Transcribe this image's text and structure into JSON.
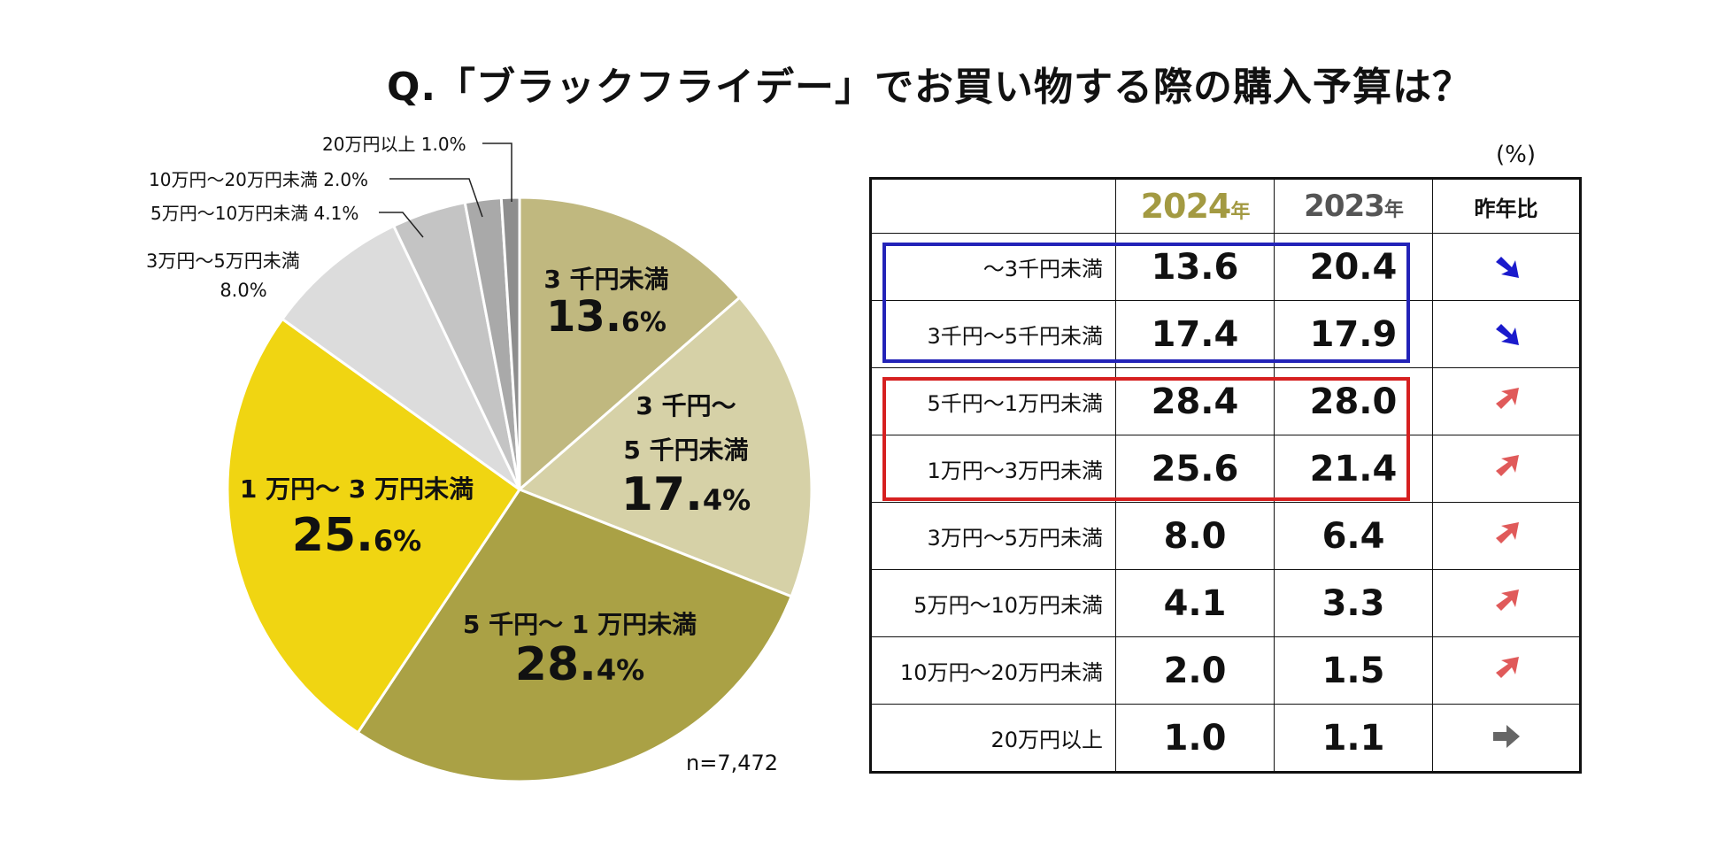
{
  "title": "Q.「ブラックフライデー」でお買い物する際の購入予算は？",
  "sample_size": "n=7,472",
  "unit_label": "(%)",
  "colors": {
    "up_arrow": "#e05a5a",
    "down_arrow": "#1a1acc",
    "flat_arrow": "#666666",
    "year_2024": "#a39a42",
    "year_2023": "#555555",
    "decrease_box": "#2323b8",
    "increase_box": "#d62020"
  },
  "table": {
    "header": {
      "label": "",
      "y2024_num": "2024",
      "y2024_suffix": "年",
      "y2023_num": "2023",
      "y2023_suffix": "年",
      "compare": "昨年比"
    },
    "rows": [
      {
        "label": "〜3千円未満",
        "v2024": "13.6",
        "v2023": "20.4",
        "trend": "down"
      },
      {
        "label": "3千円〜5千円未満",
        "v2024": "17.4",
        "v2023": "17.9",
        "trend": "down"
      },
      {
        "label": "5千円〜1万円未満",
        "v2024": "28.4",
        "v2023": "28.0",
        "trend": "up"
      },
      {
        "label": "1万円〜3万円未満",
        "v2024": "25.6",
        "v2023": "21.4",
        "trend": "up"
      },
      {
        "label": "3万円〜5万円未満",
        "v2024": "8.0",
        "v2023": "6.4",
        "trend": "up"
      },
      {
        "label": "5万円〜10万円未満",
        "v2024": "4.1",
        "v2023": "3.3",
        "trend": "up"
      },
      {
        "label": "10万円〜20万円未満",
        "v2024": "2.0",
        "v2023": "1.5",
        "trend": "up"
      },
      {
        "label": "20万円以上",
        "v2024": "1.0",
        "v2023": "1.1",
        "trend": "flat"
      }
    ]
  },
  "chart_data": {
    "type": "pie",
    "title": "Q.「ブラックフライデー」でお買い物する際の購入予算は？",
    "start_angle_deg": 0,
    "direction": "clockwise",
    "slices": [
      {
        "name": "3千円未満",
        "value": 13.6,
        "color": "#c0b87f",
        "label_lines": [
          "3 千円未満"
        ],
        "value_main": "13.",
        "value_frac": "6%"
      },
      {
        "name": "3千円〜5千円未満",
        "value": 17.4,
        "color": "#d6d1a7",
        "label_lines": [
          "3 千円〜",
          "5 千円未満"
        ],
        "value_main": "17.",
        "value_frac": "4%"
      },
      {
        "name": "5千円〜1万円未満",
        "value": 28.4,
        "color": "#aaa145",
        "label_lines": [
          "5 千円〜 1 万円未満"
        ],
        "value_main": "28.",
        "value_frac": "4%"
      },
      {
        "name": "1万円〜3万円未満",
        "value": 25.6,
        "color": "#f0d512",
        "label_lines": [
          "1 万円〜 3 万円未満"
        ],
        "value_main": "25.",
        "value_frac": "6%"
      },
      {
        "name": "3万円〜5万円未満",
        "value": 8.0,
        "color": "#dcdcdc",
        "label_lines": [
          "3万円〜5万円未満",
          "8.0%"
        ]
      },
      {
        "name": "5万円〜10万円未満",
        "value": 4.1,
        "color": "#c4c4c4",
        "label_lines": [
          "5万円〜10万円未満 4.1%"
        ]
      },
      {
        "name": "10万円〜20万円未満",
        "value": 2.0,
        "color": "#a9a9a9",
        "label_lines": [
          "10万円〜20万円未満 2.0%"
        ]
      },
      {
        "name": "20万円以上",
        "value": 1.0,
        "color": "#8e8e8e",
        "label_lines": [
          "20万円以上 1.0%"
        ]
      }
    ]
  }
}
